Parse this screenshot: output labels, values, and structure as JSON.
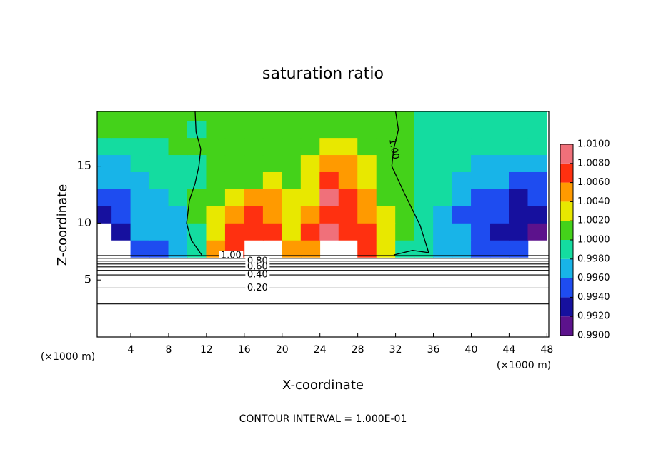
{
  "chart_data": {
    "type": "contour",
    "title": "saturation ratio",
    "x_label": "X-coordinate",
    "y_label": "Z-coordinate",
    "x_unit": "(×1000 m)",
    "x_unit_right": "(×1000 m)",
    "footer": "CONTOUR INTERVAL = 1.000E-01",
    "xlim": [
      0.45,
      48.2
    ],
    "ylim": [
      0,
      19.8
    ],
    "xticks": [
      4,
      8,
      12,
      16,
      20,
      24,
      28,
      32,
      36,
      40,
      44,
      48
    ],
    "yticks": [
      5,
      10,
      15
    ],
    "x": [
      1,
      3,
      5,
      7,
      9,
      11,
      13,
      15,
      17,
      19,
      21,
      23,
      25,
      27,
      29,
      31,
      33,
      35,
      37,
      39,
      41,
      43,
      45,
      47
    ],
    "z": [
      7.75,
      9.25,
      10.75,
      12.25,
      13.75,
      15.25,
      16.75,
      18.25,
      19.75
    ],
    "values": [
      [
        null,
        null,
        0.995,
        0.9955,
        0.9965,
        0.999,
        1.004,
        1.007,
        null,
        null,
        1.004,
        1.005,
        null,
        null,
        1.007,
        1.003,
        0.9995,
        0.999,
        0.9978,
        0.9965,
        0.9955,
        0.995,
        0.994,
        null
      ],
      [
        null,
        0.993,
        0.996,
        0.9965,
        0.9965,
        0.9995,
        1.003,
        1.006,
        1.0075,
        1.007,
        1.003,
        1.006,
        1.008,
        1.0075,
        1.006,
        1.0025,
        1.0,
        0.9985,
        0.9975,
        0.9962,
        0.995,
        0.9935,
        0.9925,
        0.9915
      ],
      [
        0.9925,
        0.994,
        0.9965,
        0.997,
        0.997,
        1.0,
        1.002,
        1.004,
        1.006,
        1.0055,
        1.0025,
        1.004,
        1.0075,
        1.0075,
        1.0055,
        1.002,
        1.0,
        0.999,
        0.9975,
        0.9955,
        0.9948,
        0.994,
        0.9925,
        0.9935
      ],
      [
        0.9945,
        0.9955,
        0.997,
        0.9975,
        0.998,
        1.0,
        1.001,
        1.002,
        1.004,
        1.004,
        1.002,
        1.003,
        1.0085,
        1.0065,
        1.0045,
        1.0015,
        1.0002,
        0.9992,
        0.998,
        0.996,
        0.9955,
        0.995,
        0.9935,
        0.994
      ],
      [
        0.996,
        0.9965,
        0.997,
        0.998,
        0.9985,
        0.9995,
        1.0005,
        1.001,
        1.0015,
        1.002,
        1.0015,
        1.0035,
        1.007,
        1.0055,
        1.0035,
        1.0012,
        1.0003,
        0.9995,
        0.9985,
        0.997,
        0.9968,
        0.9965,
        0.995,
        0.9955
      ],
      [
        0.9975,
        0.9975,
        0.9985,
        0.999,
        0.9995,
        0.9995,
        1.0002,
        1.0005,
        1.0008,
        1.001,
        1.001,
        1.002,
        1.0045,
        1.004,
        1.0025,
        1.001,
        1.0003,
        0.9998,
        0.999,
        0.998,
        0.9975,
        0.9975,
        0.9965,
        0.9965
      ],
      [
        0.999,
        0.999,
        0.9995,
        0.9995,
        1.0,
        1.0,
        1.0001,
        1.0002,
        1.0004,
        1.0005,
        1.0006,
        1.001,
        1.002,
        1.002,
        1.0015,
        1.0006,
        1.0002,
        0.9999,
        0.9995,
        0.999,
        0.9985,
        0.9985,
        0.998,
        0.998
      ],
      [
        1.0,
        1.0,
        1.0,
        1.0,
        1.0,
        0.9998,
        1.0,
        1.0001,
        1.0002,
        1.0003,
        1.0003,
        1.0004,
        1.0008,
        1.0008,
        1.0006,
        1.0003,
        1.0001,
        0.9999,
        0.9998,
        0.9995,
        0.9995,
        0.9995,
        0.999,
        0.999
      ],
      [
        1.0,
        1.0,
        1.0,
        1.0,
        1.0,
        1.0,
        1.0,
        1.0,
        1.0001,
        1.0001,
        1.0001,
        1.0002,
        1.0003,
        1.0003,
        1.0002,
        1.0001,
        1.0,
        0.9999,
        0.9999,
        0.9998,
        0.9998,
        0.9998,
        0.9995,
        0.9995
      ]
    ],
    "levels": [
      {
        "value": 0.99,
        "label": "0.9900"
      },
      {
        "value": 0.992,
        "label": "0.9920"
      },
      {
        "value": 0.994,
        "label": "0.9940"
      },
      {
        "value": 0.996,
        "label": "0.9960"
      },
      {
        "value": 0.998,
        "label": "0.9980"
      },
      {
        "value": 1.0,
        "label": "1.0000"
      },
      {
        "value": 1.002,
        "label": "1.0020"
      },
      {
        "value": 1.004,
        "label": "1.0040"
      },
      {
        "value": 1.006,
        "label": "1.0060"
      },
      {
        "value": 1.008,
        "label": "1.0080"
      },
      {
        "value": 1.01,
        "label": "1.0100"
      }
    ],
    "colors": [
      "#5c128c",
      "#16109e",
      "#1e4cf0",
      "#18b4e8",
      "#14dca0",
      "#44d21a",
      "#e8e800",
      "#ff9a00",
      "#ff3010",
      "#f0707a"
    ],
    "contours": [
      {
        "label": "1.00",
        "z": 7.15
      },
      {
        "z": 6.9
      },
      {
        "label": "0.80",
        "z": 6.65
      },
      {
        "z": 6.4
      },
      {
        "label": "0.60",
        "z": 6.15
      },
      {
        "z": 5.85
      },
      {
        "label": "0.40",
        "z": 5.45
      },
      {
        "label": "0.20",
        "z": 4.3
      },
      {
        "z": 2.9
      }
    ],
    "contour_paths": [
      {
        "x": [
          11.5,
          10.4,
          9.9,
          10.2,
          10.8,
          11.2,
          11.4,
          10.9,
          10.8
        ],
        "z": [
          7.2,
          8.5,
          10.0,
          12.0,
          13.5,
          15.0,
          16.5,
          18.0,
          19.8
        ]
      },
      {
        "label": "1.00",
        "x": [
          31.8,
          33.8,
          35.5,
          34.6,
          33.0,
          31.6,
          31.8,
          32.3,
          32.0
        ],
        "z": [
          7.2,
          7.6,
          7.4,
          9.8,
          12.5,
          15.0,
          16.5,
          18.2,
          19.8
        ]
      }
    ]
  }
}
